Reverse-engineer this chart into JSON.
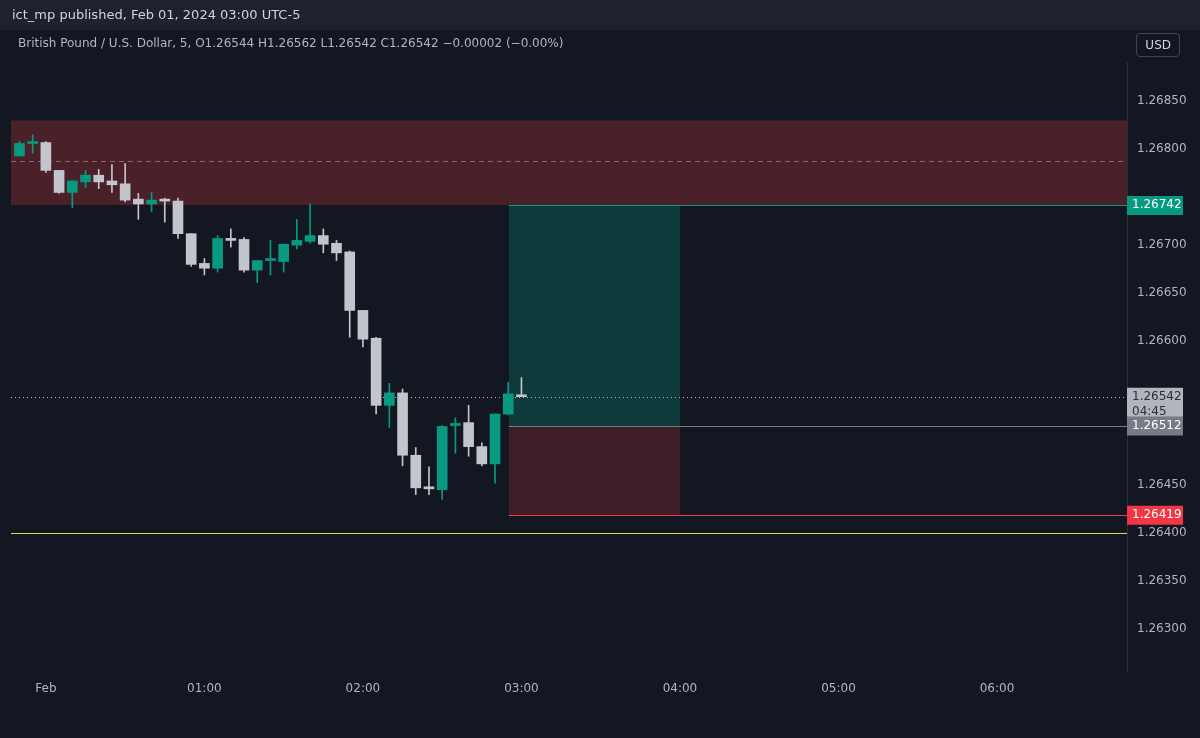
{
  "chart_data": {
    "type": "candlestick",
    "title": "British Pound / U.S. Dollar, 5, O1.26544 H1.26562 L1.26542 C1.26542 −0.00002 (−0.00%)",
    "subtitle": "ict_mp published, Feb 01, 2024 03:00 UTC-5",
    "annotations": [
      "USD"
    ],
    "x": [
      -0.1667,
      -0.0833,
      0,
      0.0833,
      0.1667,
      0.25,
      0.3333,
      0.4167,
      0.5,
      0.5833,
      0.6667,
      0.75,
      0.8333,
      0.9167,
      1,
      1.0833,
      1.1667,
      1.25,
      1.3333,
      1.4167,
      1.5,
      1.5833,
      1.6667,
      1.75,
      1.8333,
      1.9167,
      2,
      2.0833,
      2.1667,
      2.25,
      2.3333,
      2.4167,
      2.5,
      2.5833,
      2.6667,
      2.75,
      2.8333,
      2.9167,
      3
    ],
    "ohlc": [
      [
        1.26793,
        1.26808,
        1.26793,
        1.26806
      ],
      [
        1.26806,
        1.26815,
        1.26796,
        1.26807
      ],
      [
        1.26807,
        1.26808,
        1.26776,
        1.26778
      ],
      [
        1.26778,
        1.26778,
        1.26754,
        1.26755
      ],
      [
        1.26755,
        1.26767,
        1.26739,
        1.26767
      ],
      [
        1.26766,
        1.26778,
        1.2676,
        1.26773
      ],
      [
        1.26773,
        1.26779,
        1.26759,
        1.26766
      ],
      [
        1.26767,
        1.26784,
        1.26755,
        1.26763
      ],
      [
        1.26764,
        1.26785,
        1.26745,
        1.26747
      ],
      [
        1.26748,
        1.26754,
        1.26727,
        1.26743
      ],
      [
        1.26743,
        1.26755,
        1.26735,
        1.26747
      ],
      [
        1.26748,
        1.26749,
        1.26724,
        1.26746
      ],
      [
        1.26746,
        1.26749,
        1.26707,
        1.26712
      ],
      [
        1.26712,
        1.26712,
        1.26678,
        1.2668
      ],
      [
        1.26681,
        1.26686,
        1.26669,
        1.26676
      ],
      [
        1.26676,
        1.2671,
        1.26672,
        1.26707
      ],
      [
        1.26707,
        1.26717,
        1.26698,
        1.26705
      ],
      [
        1.26706,
        1.26708,
        1.26672,
        1.26674
      ],
      [
        1.26674,
        1.26684,
        1.26661,
        1.26684
      ],
      [
        1.26684,
        1.26705,
        1.26669,
        1.26685
      ],
      [
        1.26683,
        1.26701,
        1.26672,
        1.26701
      ],
      [
        1.267,
        1.26727,
        1.26696,
        1.26705
      ],
      [
        1.26704,
        1.26743,
        1.26702,
        1.2671
      ],
      [
        1.2671,
        1.26717,
        1.26692,
        1.26701
      ],
      [
        1.26702,
        1.26705,
        1.26684,
        1.26692
      ],
      [
        1.26693,
        1.26694,
        1.26604,
        1.26632
      ],
      [
        1.26632,
        1.26632,
        1.26594,
        1.26602
      ],
      [
        1.26603,
        1.26604,
        1.26524,
        1.26533
      ],
      [
        1.26533,
        1.26556,
        1.2651,
        1.26546
      ],
      [
        1.26546,
        1.2655,
        1.2647,
        1.26481
      ],
      [
        1.26481,
        1.26489,
        1.2644,
        1.26447
      ],
      [
        1.26448,
        1.26469,
        1.2644,
        1.26446
      ],
      [
        1.26445,
        1.26512,
        1.26435,
        1.26511
      ],
      [
        1.26512,
        1.2652,
        1.26483,
        1.26514
      ],
      [
        1.26515,
        1.26533,
        1.2648,
        1.2649
      ],
      [
        1.2649,
        1.26494,
        1.2647,
        1.26472
      ],
      [
        1.26472,
        1.26524,
        1.26452,
        1.26524
      ],
      [
        1.26524,
        1.26557,
        1.26523,
        1.26545
      ],
      [
        1.26544,
        1.26562,
        1.26542,
        1.26542
      ]
    ],
    "colors": [
      "#089981",
      "#089981",
      "#c3c5cc",
      "#c3c5cc",
      "#089981",
      "#089981",
      "#c3c5cc",
      "#c3c5cc",
      "#c3c5cc",
      "#c3c5cc",
      "#089981",
      "#c3c5cc",
      "#c3c5cc",
      "#c3c5cc",
      "#c3c5cc",
      "#089981",
      "#c3c5cc",
      "#c3c5cc",
      "#089981",
      "#089981",
      "#089981",
      "#089981",
      "#089981",
      "#c3c5cc",
      "#c3c5cc",
      "#c3c5cc",
      "#c3c5cc",
      "#c3c5cc",
      "#089981",
      "#c3c5cc",
      "#c3c5cc",
      "#c3c5cc",
      "#089981",
      "#089981",
      "#c3c5cc",
      "#c3c5cc",
      "#089981",
      "#089981",
      "#c3c5cc"
    ],
    "xlim": [
      -0.22,
      6.82
    ],
    "xticks": [
      {
        "value": 0,
        "label": "Feb"
      },
      {
        "value": 1,
        "label": "01:00"
      },
      {
        "value": 2,
        "label": "02:00"
      },
      {
        "value": 3,
        "label": "03:00"
      },
      {
        "value": 4,
        "label": "04:00"
      },
      {
        "value": 5,
        "label": "05:00"
      },
      {
        "value": 6,
        "label": "06:00"
      }
    ],
    "ylim": [
      1.26255,
      1.26891
    ],
    "yticks": [
      {
        "value": 1.263,
        "label": "1.26300"
      },
      {
        "value": 1.2635,
        "label": "1.26350"
      },
      {
        "value": 1.264,
        "label": "1.26400"
      },
      {
        "value": 1.2645,
        "label": "1.26450"
      },
      {
        "value": 1.266,
        "label": "1.26600"
      },
      {
        "value": 1.2665,
        "label": "1.26650"
      },
      {
        "value": 1.267,
        "label": "1.26700"
      },
      {
        "value": 1.268,
        "label": "1.26800"
      },
      {
        "value": 1.2685,
        "label": "1.26850"
      }
    ],
    "bands": [
      {
        "axis": "y",
        "from": 1.26742,
        "to": 1.2683,
        "color": "#4a2029"
      }
    ],
    "ref_lines": [
      {
        "axis": "y",
        "value": 1.26788,
        "color": "#8a6a70",
        "line_style": "dashed"
      },
      {
        "axis": "y",
        "value": 1.264,
        "color": "#e8d44d"
      },
      {
        "axis": "y",
        "value": 1.26542,
        "label": "1.26542\n04:45",
        "color": "#b2b5be",
        "line_style": "dotted"
      },
      {
        "axis": "y",
        "value": 1.26742,
        "label": "1.26742",
        "color": "#089981"
      },
      {
        "axis": "y",
        "value": 1.26512,
        "label": "1.26512",
        "color": "#787b86"
      },
      {
        "axis": "y",
        "value": 1.26419,
        "label": "1.26419",
        "color": "#f23645"
      }
    ],
    "grid": false,
    "legend": false
  }
}
